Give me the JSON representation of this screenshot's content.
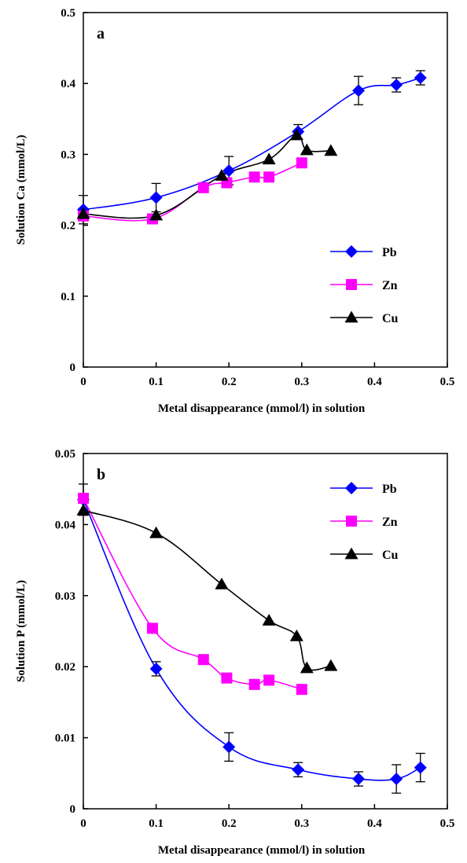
{
  "chart_data": [
    {
      "type": "line",
      "panel_label": "a",
      "xlabel": "Metal disappearance (mmol/l) in solution",
      "ylabel": "Solution Ca (mmol/L)",
      "xlim": [
        0,
        0.5
      ],
      "ylim": [
        0,
        0.5
      ],
      "xticks": [
        "0",
        "0.1",
        "0.2",
        "0.3",
        "0.4",
        "0.5"
      ],
      "yticks": [
        "0",
        "0.1",
        "0.2",
        "0.3",
        "0.4",
        "0.5"
      ],
      "grid": false,
      "legend_position": "lower-right",
      "series": [
        {
          "name": "Pb",
          "marker": "diamond",
          "color": "#0000FF",
          "x": [
            0,
            0.1,
            0.2,
            0.295,
            0.378,
            0.43,
            0.463
          ],
          "y": [
            0.222,
            0.239,
            0.277,
            0.332,
            0.39,
            0.398,
            0.408
          ],
          "err": [
            0.02,
            0.02,
            0.02,
            0.01,
            0.02,
            0.01,
            0.01
          ]
        },
        {
          "name": "Zn",
          "marker": "square",
          "color": "#FF00FF",
          "x": [
            0,
            0.095,
            0.165,
            0.197,
            0.235,
            0.255,
            0.3
          ],
          "y": [
            0.213,
            0.209,
            0.253,
            0.26,
            0.268,
            0.268,
            0.288
          ]
        },
        {
          "name": "Cu",
          "marker": "triangle",
          "color": "#000000",
          "x": [
            0,
            0.1,
            0.19,
            0.255,
            0.293,
            0.307,
            0.34
          ],
          "y": [
            0.216,
            0.214,
            0.27,
            0.293,
            0.327,
            0.306,
            0.305
          ]
        }
      ]
    },
    {
      "type": "line",
      "panel_label": "b",
      "xlabel": "Metal disappearance (mmol/l) in solution",
      "ylabel": "Solution P (mmol/L)",
      "xlim": [
        0,
        0.5
      ],
      "ylim": [
        0,
        0.05
      ],
      "xticks": [
        "0",
        "0.1",
        "0.2",
        "0.3",
        "0.4",
        "0.5"
      ],
      "yticks": [
        "0",
        "0.01",
        "0.02",
        "0.03",
        "0.04",
        "0.05"
      ],
      "grid": false,
      "legend_position": "top-right",
      "series": [
        {
          "name": "Pb",
          "marker": "diamond",
          "color": "#0000FF",
          "x": [
            0,
            0.1,
            0.2,
            0.295,
            0.378,
            0.43,
            0.463
          ],
          "y": [
            0.0435,
            0.0197,
            0.0087,
            0.0055,
            0.0042,
            0.0042,
            0.0058
          ],
          "err": [
            0.0022,
            0.001,
            0.002,
            0.001,
            0.001,
            0.002,
            0.002
          ]
        },
        {
          "name": "Zn",
          "marker": "square",
          "color": "#FF00FF",
          "x": [
            0,
            0.095,
            0.165,
            0.197,
            0.235,
            0.255,
            0.3
          ],
          "y": [
            0.0437,
            0.0254,
            0.021,
            0.0184,
            0.0175,
            0.0181,
            0.0168
          ]
        },
        {
          "name": "Cu",
          "marker": "triangle",
          "color": "#000000",
          "x": [
            0,
            0.1,
            0.19,
            0.255,
            0.293,
            0.307,
            0.34
          ],
          "y": [
            0.042,
            0.0388,
            0.0316,
            0.0265,
            0.0243,
            0.0198,
            0.0201
          ]
        }
      ]
    }
  ]
}
